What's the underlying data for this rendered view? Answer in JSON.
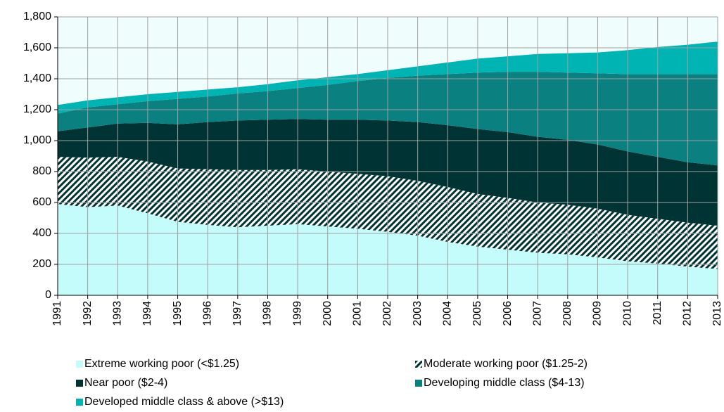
{
  "chart_data": {
    "type": "stacked_area",
    "categories": [
      "1991",
      "1992",
      "1993",
      "1994",
      "1995",
      "1996",
      "1997",
      "1998",
      "1999",
      "2000",
      "2001",
      "2002",
      "2003",
      "2004",
      "2005",
      "2006",
      "2007",
      "2008",
      "2009",
      "2010",
      "2011",
      "2012",
      "2013"
    ],
    "series": [
      {
        "name": "Extreme working poor (<$1.25)",
        "color": "#c4fbfb",
        "values": [
          590,
          570,
          580,
          530,
          475,
          455,
          440,
          450,
          460,
          445,
          430,
          410,
          385,
          345,
          315,
          295,
          275,
          265,
          245,
          220,
          205,
          185,
          170
        ]
      },
      {
        "name": "Moderate working poor ($1.25-2)",
        "color": "#003333",
        "hatch": true,
        "values": [
          305,
          320,
          315,
          335,
          345,
          360,
          370,
          360,
          355,
          355,
          355,
          360,
          355,
          355,
          340,
          335,
          325,
          320,
          315,
          300,
          290,
          285,
          280
        ]
      },
      {
        "name": "Near poor ($2-4)",
        "color": "#003333",
        "values": [
          165,
          195,
          215,
          250,
          285,
          305,
          320,
          325,
          325,
          335,
          350,
          360,
          380,
          400,
          420,
          425,
          425,
          420,
          415,
          410,
          400,
          390,
          390
        ]
      },
      {
        "name": "Developing middle class ($4-13)",
        "color": "#0a8080",
        "values": [
          115,
          130,
          125,
          140,
          165,
          165,
          175,
          185,
          200,
          225,
          250,
          275,
          300,
          330,
          365,
          390,
          420,
          435,
          460,
          500,
          535,
          570,
          590
        ]
      },
      {
        "name": "Developed middle class & above (>$13)",
        "color": "#00b4b4",
        "values": [
          55,
          45,
          45,
          45,
          45,
          45,
          40,
          45,
          50,
          50,
          45,
          50,
          60,
          75,
          90,
          100,
          115,
          125,
          135,
          155,
          175,
          190,
          210
        ]
      }
    ],
    "ylim": [
      0,
      1800
    ],
    "yticks": [
      0,
      200,
      400,
      600,
      800,
      {
        "value": 1000,
        "label": "1,000"
      },
      {
        "value": 1200,
        "label": "1,200"
      },
      {
        "value": 1400,
        "label": "1,400"
      },
      {
        "value": 1600,
        "label": "1,600"
      },
      {
        "value": 1800,
        "label": "1,800"
      }
    ],
    "grid": true
  }
}
